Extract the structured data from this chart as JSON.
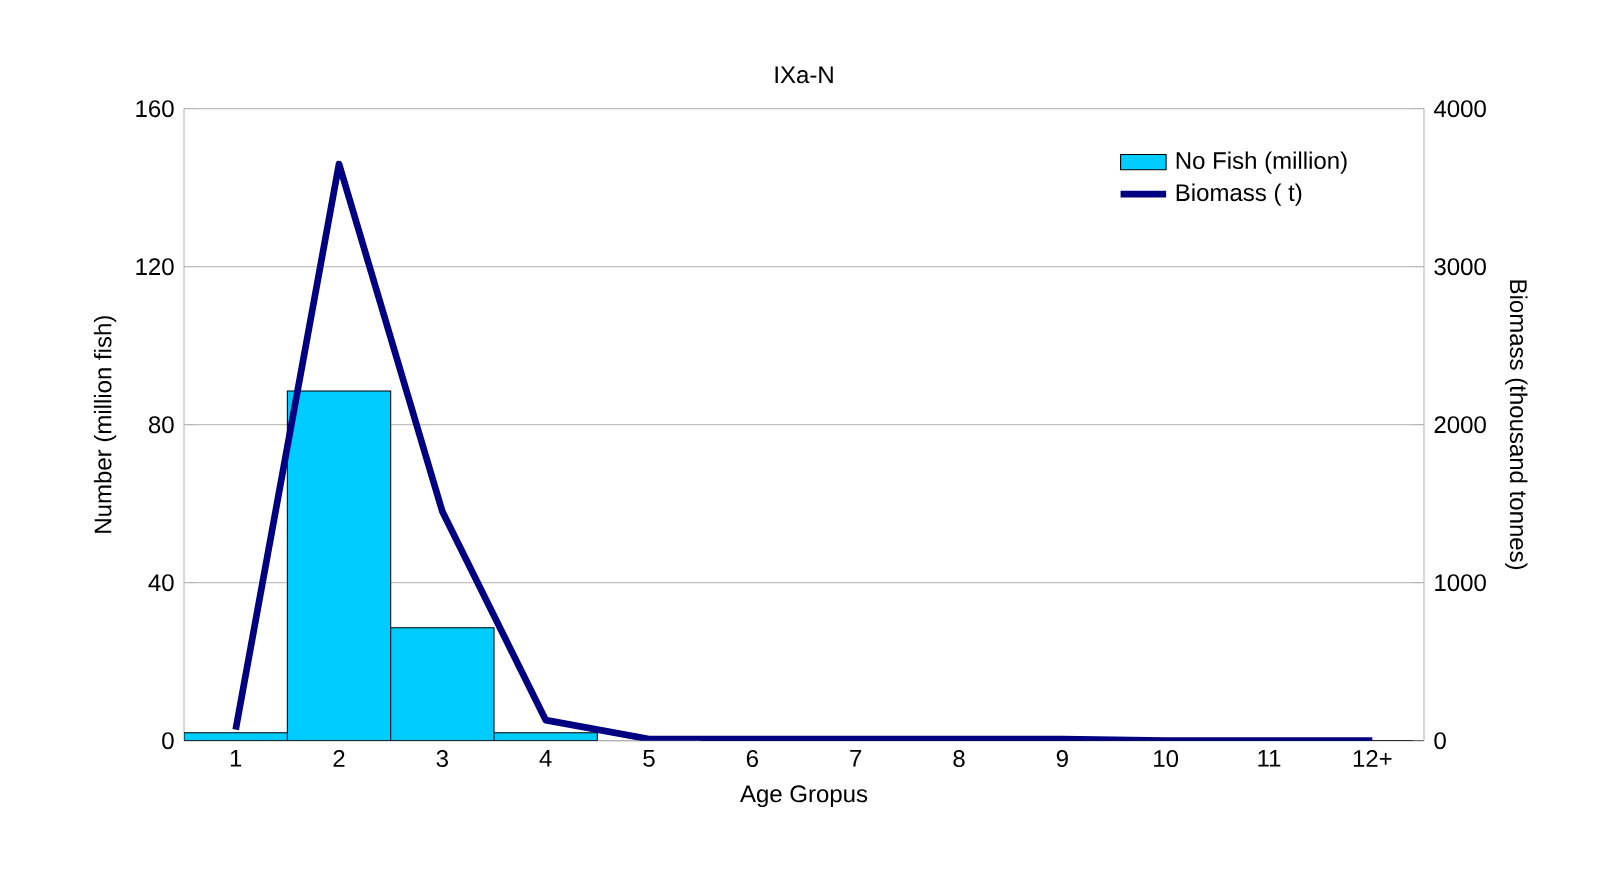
{
  "chart_data": {
    "type": "bar",
    "title": "IXa-N",
    "xlabel": "Age Gropus",
    "ylabel": "Number (million fish)",
    "y2label": "Biomass (thousand tonnes)",
    "categories": [
      "1",
      "2",
      "3",
      "4",
      "5",
      "6",
      "7",
      "8",
      "9",
      "10",
      "11",
      "12+"
    ],
    "series": [
      {
        "name": "No Fish (million)",
        "color": "#00ccff",
        "values": [
          2,
          88.5,
          28.6,
          2,
          null,
          0,
          0,
          0,
          0,
          0,
          0,
          0
        ]
      },
      {
        "name": "Biomass ( t)",
        "type": "line",
        "axis": "y2",
        "color": "#000080",
        "values": [
          70,
          3650,
          1450,
          130,
          10,
          10,
          10,
          10,
          10,
          0,
          0,
          0
        ]
      }
    ],
    "ylim": [
      0,
      160
    ],
    "yticks": [
      0,
      40,
      80,
      120,
      160
    ],
    "y2lim": [
      0,
      4000
    ],
    "y2ticks": [
      0,
      1000,
      2000,
      3000,
      4000
    ],
    "grid": "y",
    "legend": "top right"
  }
}
